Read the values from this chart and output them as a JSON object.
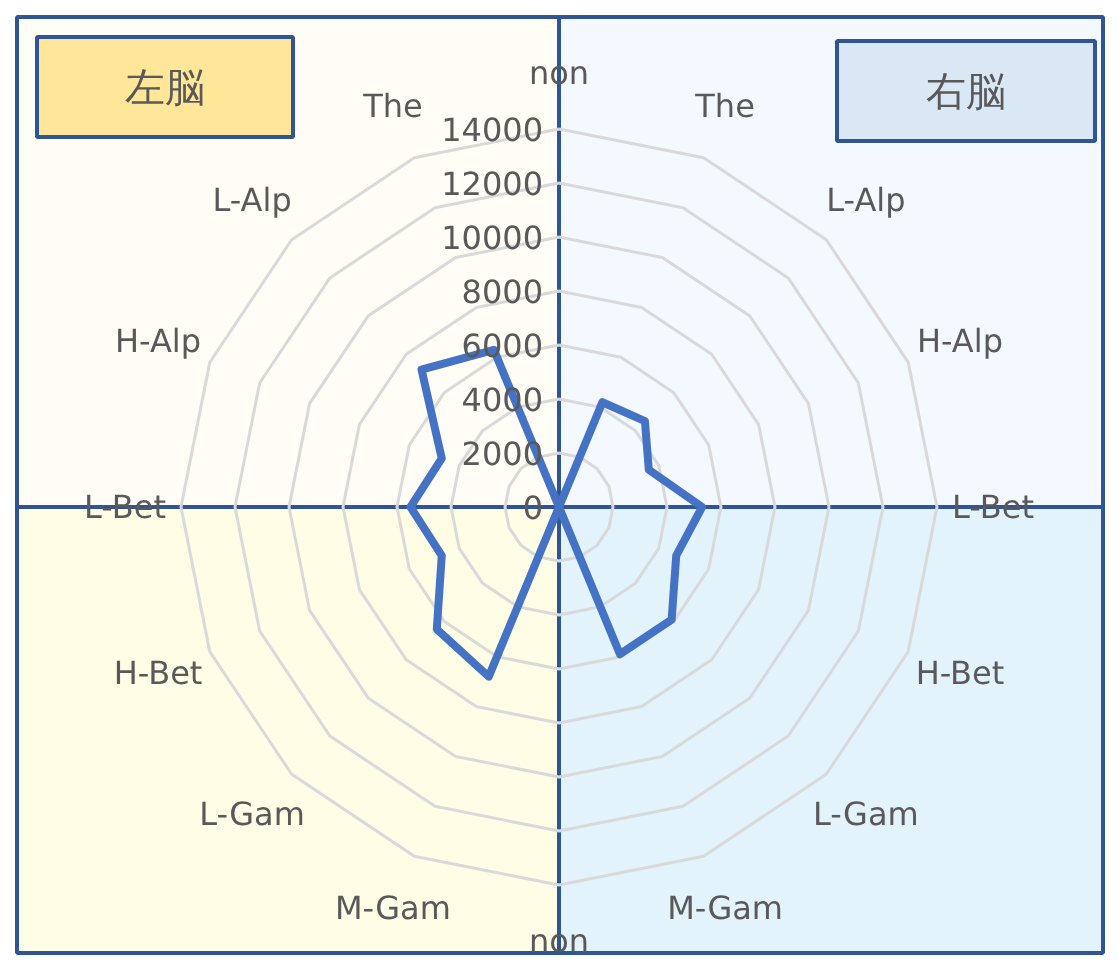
{
  "chart_data": {
    "type": "radar",
    "categories": [
      "non",
      "The",
      "L-Alp",
      "H-Alp",
      "L-Bet",
      "H-Bet",
      "L-Gam",
      "M-Gam",
      "non",
      "M-Gam",
      "L-Gam",
      "H-Bet",
      "L-Bet",
      "H-Alp",
      "L-Alp",
      "The"
    ],
    "series": [
      {
        "color": "#4472c4",
        "values": [
          0,
          4200,
          4500,
          3600,
          5300,
          4700,
          5900,
          5900,
          0,
          6800,
          6400,
          4700,
          5500,
          4700,
          7200,
          6300
        ]
      }
    ],
    "ylim": [
      0,
      14000
    ],
    "yticks": [
      0,
      2000,
      4000,
      6000,
      8000,
      10000,
      12000,
      14000
    ],
    "grid": true,
    "line_style": "solid",
    "marker": "none",
    "annotations": [
      "左脳",
      "右脳"
    ]
  }
}
